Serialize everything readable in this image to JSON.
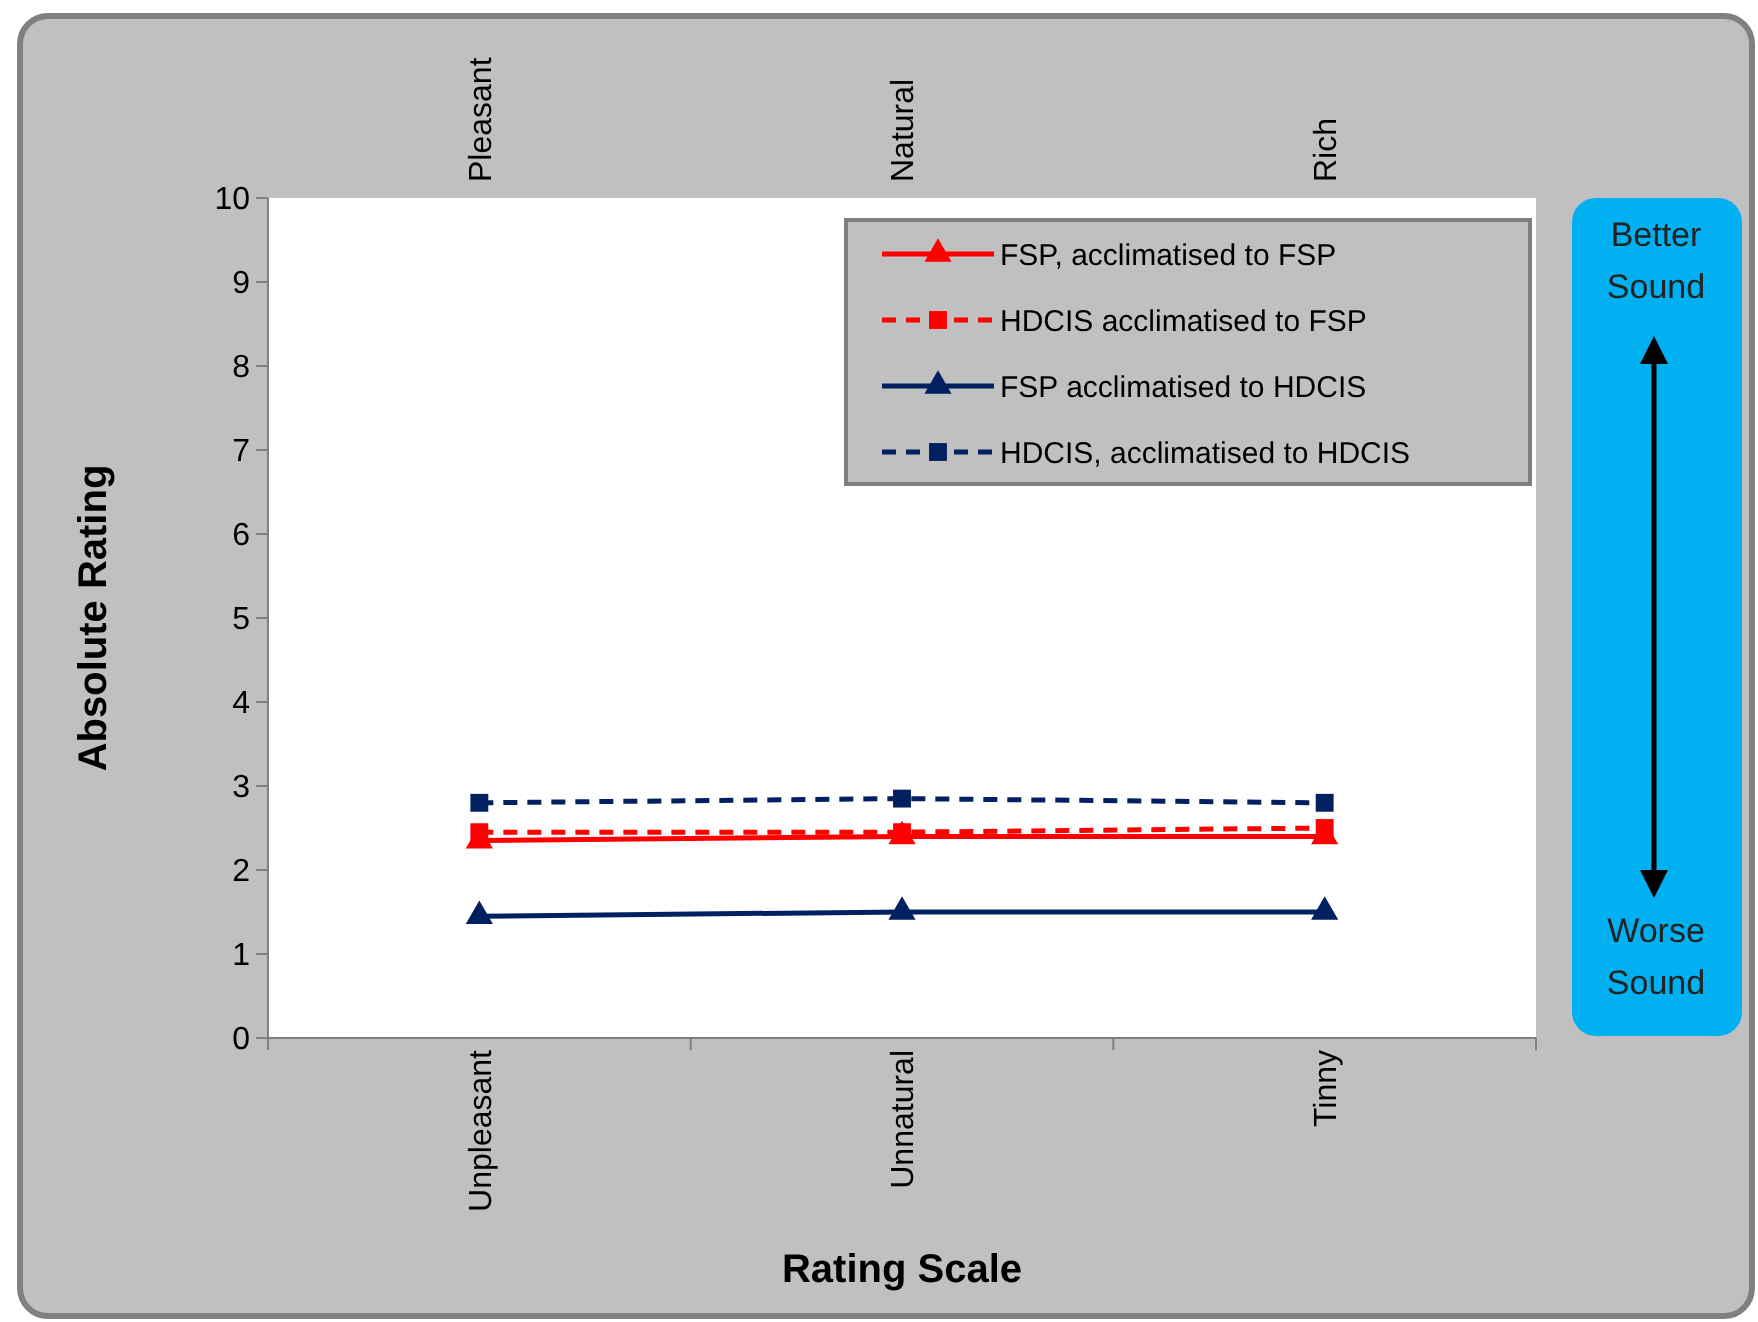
{
  "chart_data": {
    "type": "line",
    "xlabel": "Rating Scale",
    "ylabel": "Absolute Rating",
    "categories": [
      "Unpleasant",
      "Unnatural",
      "Tinny"
    ],
    "series": [
      {
        "name": "FSP, acclimatised to FSP",
        "color": "#ff0000",
        "values": [
          2.35,
          2.4,
          2.4
        ],
        "marker": "triangle",
        "line_style": "solid"
      },
      {
        "name": "HDCIS acclimatised to FSP",
        "color": "#ff0000",
        "values": [
          2.45,
          2.45,
          2.5
        ],
        "marker": "square",
        "line_style": "dashed"
      },
      {
        "name": "FSP acclimatised to HDCIS",
        "color": "#002060",
        "values": [
          1.45,
          1.5,
          1.5
        ],
        "marker": "triangle",
        "line_style": "solid"
      },
      {
        "name": "HDCIS, acclimatised to HDCIS",
        "color": "#002060",
        "values": [
          2.8,
          2.85,
          2.8
        ],
        "marker": "square",
        "line_style": "dashed"
      }
    ],
    "ylim": [
      0,
      10
    ],
    "yticks": [
      0,
      1,
      2,
      3,
      4,
      5,
      6,
      7,
      8,
      9,
      10
    ],
    "grid": false,
    "legend": "top right",
    "annotations": [
      "Pleasant",
      "Natural",
      "Rich",
      "Better Sound",
      "Worse Sound"
    ]
  }
}
